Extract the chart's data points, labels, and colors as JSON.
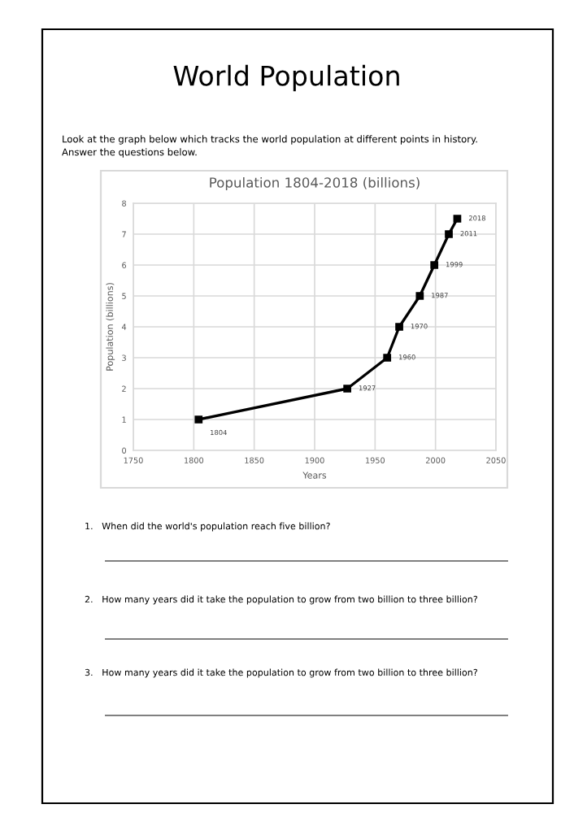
{
  "chart_data": {
    "type": "line",
    "title": "Population 1804-2018 (billions)",
    "xlabel": "Years",
    "ylabel": "Population (billions)",
    "x": [
      1804,
      1927,
      1960,
      1970,
      1987,
      1999,
      2011,
      2018
    ],
    "series": [
      {
        "color": "#000000",
        "values": [
          1,
          2,
          3,
          4,
          5,
          6,
          7,
          7.5
        ]
      }
    ],
    "xlim": [
      1750,
      2050
    ],
    "xticks": [
      1750,
      1800,
      1850,
      1900,
      1950,
      2000,
      2050
    ],
    "ylim": [
      0,
      8
    ],
    "yticks": [
      0,
      1,
      2,
      3,
      4,
      5,
      6,
      7,
      8
    ],
    "grid": true,
    "marker": "square",
    "line_style": "solid",
    "annotations": [
      "World Population",
      "Look at the graph below which tracks the world population at different points in history.",
      "Answer the questions below.",
      "1.   When did the world's population reach five billion?",
      "2.   How many years did it take the population to grow from two billion to three billion?",
      "3.   How many years did it take the population to grow from two billion to three billion?",
      {
        "text": "1804",
        "x": 1804,
        "y": 1
      },
      {
        "text": "1927",
        "x": 1927,
        "y": 2
      },
      {
        "text": "1960",
        "x": 1960,
        "y": 3
      },
      {
        "text": "1970",
        "x": 1970,
        "y": 4
      },
      {
        "text": "1987",
        "x": 1987,
        "y": 5
      },
      {
        "text": "1999",
        "x": 1999,
        "y": 6
      },
      {
        "text": "2011",
        "x": 2011,
        "y": 7
      },
      {
        "text": "2018",
        "x": 2018,
        "y": 7.5
      }
    ]
  }
}
